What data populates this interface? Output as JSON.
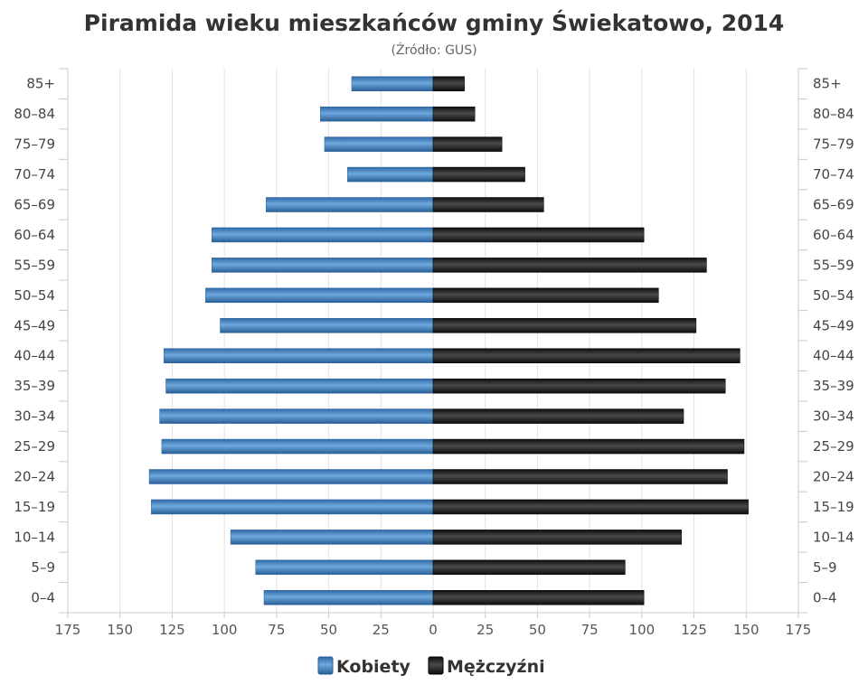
{
  "chart_data": {
    "type": "bar",
    "orientation": "horizontal",
    "title": "Piramida wieku mieszkańców gminy Świekatowo, 2014",
    "subtitle": "(Źródło: GUS)",
    "categories": [
      "0-4",
      "5-9",
      "10-14",
      "15-19",
      "20-24",
      "25-29",
      "30-34",
      "35-39",
      "40-44",
      "45-49",
      "50-54",
      "55-59",
      "60-64",
      "65-69",
      "70-74",
      "75-79",
      "80-84",
      "85+"
    ],
    "category_labels": [
      "0–4",
      "5–9",
      "10–14",
      "15–19",
      "20–24",
      "25–29",
      "30–34",
      "35–39",
      "40–44",
      "45–49",
      "50–54",
      "55–59",
      "60–64",
      "65–69",
      "70–74",
      "75–79",
      "80–84",
      "85+"
    ],
    "series": [
      {
        "name": "Kobiety",
        "side": "left",
        "color": "#3f7fc0",
        "values": [
          81,
          85,
          97,
          135,
          136,
          130,
          131,
          128,
          129,
          102,
          109,
          106,
          106,
          80,
          41,
          52,
          54,
          39
        ]
      },
      {
        "name": "Mężczyźni",
        "side": "right",
        "color": "#1a1a1a",
        "values": [
          101,
          92,
          119,
          151,
          141,
          149,
          120,
          140,
          147,
          126,
          108,
          131,
          101,
          53,
          44,
          33,
          20,
          15
        ]
      }
    ],
    "xlim": [
      -175,
      175
    ],
    "xticks": [
      -175,
      -150,
      -125,
      -100,
      -75,
      -50,
      -25,
      0,
      25,
      50,
      75,
      100,
      125,
      150,
      175
    ],
    "xtick_labels": [
      "175",
      "150",
      "125",
      "100",
      "75",
      "50",
      "25",
      "0",
      "25",
      "50",
      "75",
      "100",
      "125",
      "150",
      "175"
    ],
    "grid": true,
    "legend_position": "bottom"
  }
}
